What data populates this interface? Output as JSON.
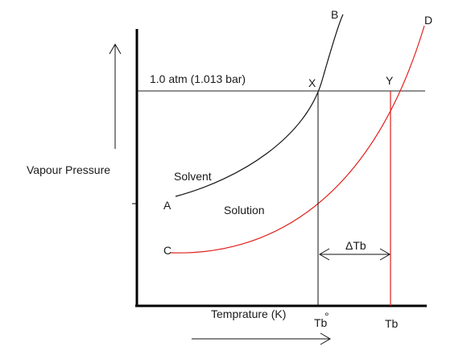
{
  "labels": {
    "pressure_line": "1.0 atm (1.013 bar)",
    "y_axis": "Vapour Pressure",
    "x_axis": "Temprature (K)",
    "solvent": "Solvent",
    "solution": "Solution",
    "delta_tb": "ΔTb",
    "tb0": "Tb",
    "tb0_mark": "°",
    "tb": "Tb"
  },
  "points": {
    "a": "A",
    "b": "B",
    "c": "C",
    "d": "D",
    "x": "X",
    "y": "Y"
  },
  "colors": {
    "solvent_curve": "#111111",
    "solution_curve": "#e0201b",
    "axes": "#000000"
  }
}
